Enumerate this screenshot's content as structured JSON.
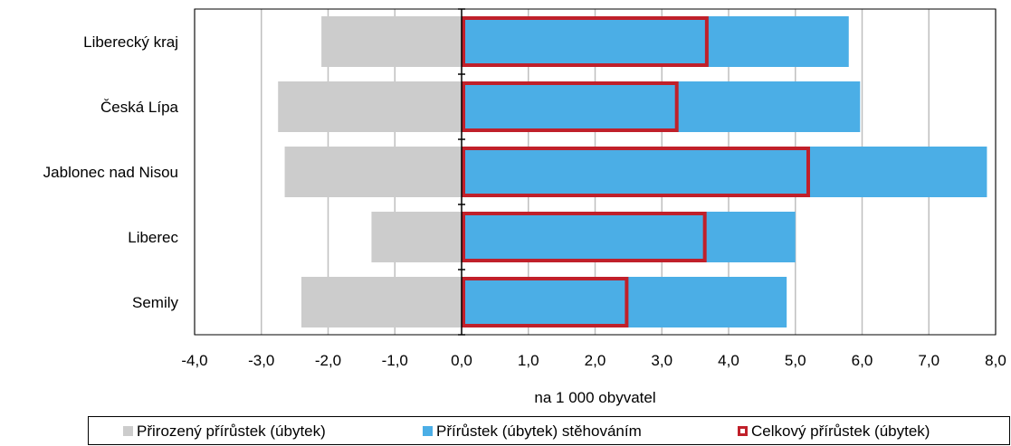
{
  "chart_data": {
    "type": "bar",
    "orientation": "horizontal",
    "categories": [
      "Liberecký kraj",
      "Česká Lípa",
      "Jablonec nad Nisou",
      "Liberec",
      "Semily"
    ],
    "series": [
      {
        "name": "Přirozený přírůstek (úbytek)",
        "values": [
          -2.1,
          -2.75,
          -2.65,
          -1.35,
          -2.4
        ],
        "color": "#cccccc",
        "style": "filled"
      },
      {
        "name": "Přírůstek (úbytek) stěhováním",
        "values": [
          5.8,
          5.97,
          7.87,
          5.0,
          4.87
        ],
        "color": "#4baee6",
        "style": "filled"
      },
      {
        "name": "Celkový přírůstek (úbytek)",
        "values": [
          3.7,
          3.25,
          5.22,
          3.67,
          2.5
        ],
        "color": "#c0202a",
        "style": "outline"
      }
    ],
    "xlim": [
      -4,
      8
    ],
    "xticks": [
      -4,
      -3,
      -2,
      -1,
      0,
      1,
      2,
      3,
      4,
      5,
      6,
      7,
      8
    ],
    "xtick_labels": [
      "-4,0",
      "-3,0",
      "-2,0",
      "-1,0",
      "0,0",
      "1,0",
      "2,0",
      "3,0",
      "4,0",
      "5,0",
      "6,0",
      "7,0",
      "8,0"
    ],
    "xlabel": "na 1 000 obyvatel",
    "ylabel": "",
    "grid": "vertical",
    "legend_position": "bottom"
  }
}
